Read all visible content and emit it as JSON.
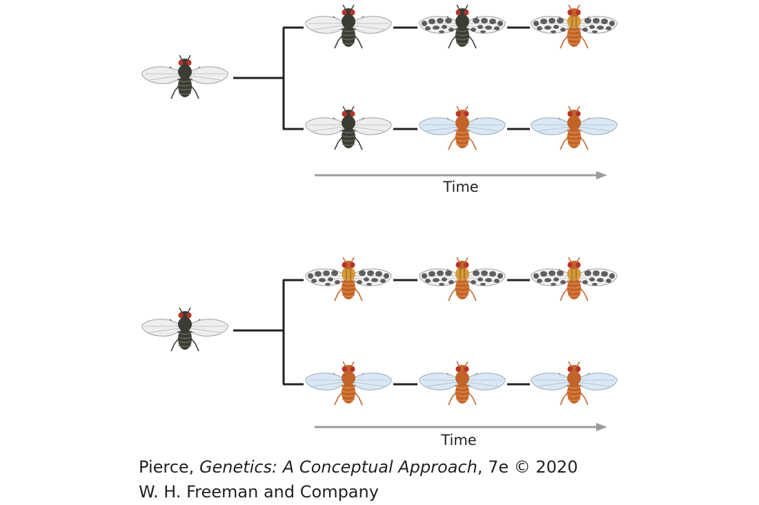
{
  "panels": [
    {
      "id": "top",
      "ancestor": {
        "body": "dark",
        "wings": "clear"
      },
      "lineages": [
        {
          "stages": [
            {
              "body": "dark",
              "wings": "clear"
            },
            {
              "body": "dark",
              "wings": "spotted"
            },
            {
              "body": "orange",
              "wings": "spotted"
            }
          ]
        },
        {
          "stages": [
            {
              "body": "dark",
              "wings": "clear"
            },
            {
              "body": "orange",
              "wings": "blue"
            },
            {
              "body": "orange",
              "wings": "blue"
            }
          ]
        }
      ],
      "axis_label": "Time"
    },
    {
      "id": "bottom",
      "ancestor": {
        "body": "dark",
        "wings": "clear"
      },
      "lineages": [
        {
          "stages": [
            {
              "body": "orange",
              "wings": "spotted"
            },
            {
              "body": "orange",
              "wings": "spotted"
            },
            {
              "body": "orange",
              "wings": "spotted"
            }
          ]
        },
        {
          "stages": [
            {
              "body": "orange",
              "wings": "blue"
            },
            {
              "body": "orange",
              "wings": "blue"
            },
            {
              "body": "orange",
              "wings": "blue"
            }
          ]
        }
      ],
      "axis_label": "Time"
    }
  ],
  "colors": {
    "connector": "#231f20",
    "arrow": "#9a9a9a",
    "dark_body": "#3b3c33",
    "dark_body_light": "#6b6d5e",
    "orange_body": "#c2642a",
    "orange_body_light": "#e08a45",
    "stripe_body": "#d59a3a",
    "eye": "#b8332a",
    "clear_wing": "#eeeeee",
    "blue_wing": "#d9e7f3",
    "spot": "#3a3a3a"
  },
  "credit": {
    "author": "Pierce, ",
    "title": "Genetics: A Conceptual Approach",
    "edition": ", 7e © 2020",
    "publisher": "W. H. Freeman and Company"
  }
}
